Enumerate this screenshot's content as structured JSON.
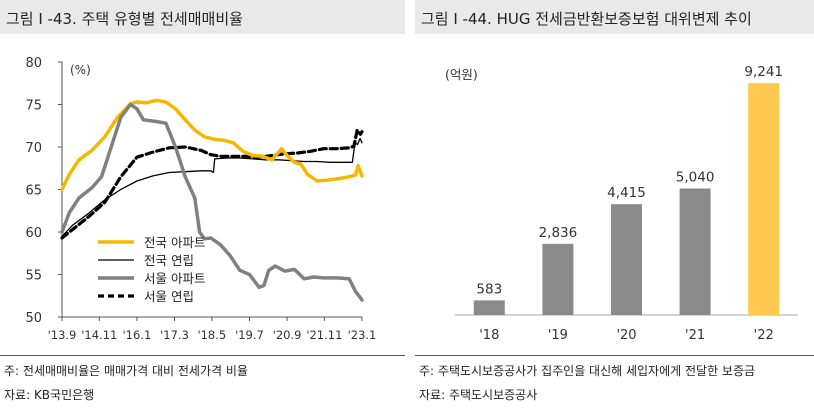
{
  "left": {
    "title": "그림 Ⅰ -43. 주택 유형별 전세매매비율",
    "note": "주: 전세매매비율은 매매가격 대비 전세가격 비율",
    "source": "자료: KB국민은행"
  },
  "right": {
    "title": "그림 Ⅰ -44. HUG 전세금반환보증보험 대위변제 추이",
    "note": "주: 주택도시보증공사가 집주인을 대신해 세입자에게 전달한 보증금",
    "source": "자료: 주택도시보증공사"
  },
  "chart_data": [
    {
      "type": "line",
      "title": "주택 유형별 전세매매비율",
      "ylabel": "(%)",
      "ylim": [
        50,
        80
      ],
      "yticks": [
        50,
        55,
        60,
        65,
        70,
        75,
        80
      ],
      "x_range": [
        2013.67,
        2023.0
      ],
      "x_tick_positions": [
        2013.67,
        2014.83,
        2016.0,
        2017.17,
        2018.33,
        2019.5,
        2020.67,
        2021.83,
        2023.0
      ],
      "x_tick_labels": [
        "'13.9",
        "'14.11",
        "'16.1",
        "'17.3",
        "'18.5",
        "'19.7",
        "'20.9",
        "'21.11",
        "'23.1"
      ],
      "legend_position": "bottom-left",
      "series": [
        {
          "name": "전국 아파트",
          "color": "#f5b800",
          "style": "solid-thick",
          "points": [
            [
              2013.67,
              65
            ],
            [
              2013.9,
              66.8
            ],
            [
              2014.2,
              68.5
            ],
            [
              2014.6,
              69.6
            ],
            [
              2015.0,
              71.2
            ],
            [
              2015.4,
              73.5
            ],
            [
              2015.8,
              75.1
            ],
            [
              2016.0,
              75.3
            ],
            [
              2016.3,
              75.2
            ],
            [
              2016.6,
              75.5
            ],
            [
              2016.9,
              75.3
            ],
            [
              2017.2,
              74.5
            ],
            [
              2017.5,
              73.2
            ],
            [
              2017.8,
              72.0
            ],
            [
              2018.1,
              71.2
            ],
            [
              2018.4,
              70.9
            ],
            [
              2018.7,
              70.8
            ],
            [
              2019.0,
              70.5
            ],
            [
              2019.3,
              69.5
            ],
            [
              2019.6,
              69.0
            ],
            [
              2019.9,
              68.9
            ],
            [
              2020.2,
              68.5
            ],
            [
              2020.5,
              69.8
            ],
            [
              2020.67,
              69.0
            ],
            [
              2020.9,
              68.2
            ],
            [
              2021.1,
              68.0
            ],
            [
              2021.3,
              66.8
            ],
            [
              2021.6,
              66.0
            ],
            [
              2021.9,
              66.1
            ],
            [
              2022.3,
              66.3
            ],
            [
              2022.6,
              66.5
            ],
            [
              2022.8,
              66.7
            ],
            [
              2022.88,
              67.8
            ],
            [
              2023.0,
              66.6
            ]
          ]
        },
        {
          "name": "전국 연립",
          "color": "#000000",
          "style": "solid-thin",
          "points": [
            [
              2013.67,
              59.5
            ],
            [
              2014.0,
              60.8
            ],
            [
              2014.5,
              62.2
            ],
            [
              2015.0,
              63.8
            ],
            [
              2015.5,
              65.0
            ],
            [
              2016.0,
              66.0
            ],
            [
              2016.5,
              66.6
            ],
            [
              2017.0,
              67.0
            ],
            [
              2017.5,
              67.1
            ],
            [
              2018.0,
              67.2
            ],
            [
              2018.3,
              67.2
            ],
            [
              2018.38,
              67.0
            ],
            [
              2018.42,
              68.6
            ],
            [
              2018.8,
              68.7
            ],
            [
              2019.2,
              68.7
            ],
            [
              2019.6,
              68.6
            ],
            [
              2020.0,
              68.5
            ],
            [
              2020.4,
              68.5
            ],
            [
              2020.8,
              68.4
            ],
            [
              2021.2,
              68.3
            ],
            [
              2021.6,
              68.3
            ],
            [
              2022.0,
              68.2
            ],
            [
              2022.4,
              68.2
            ],
            [
              2022.7,
              68.2
            ],
            [
              2022.78,
              70.5
            ],
            [
              2022.86,
              70.3
            ],
            [
              2022.94,
              71.0
            ],
            [
              2023.0,
              70.5
            ]
          ]
        },
        {
          "name": "서울 아파트",
          "color": "#808080",
          "style": "solid-thick",
          "points": [
            [
              2013.67,
              60
            ],
            [
              2013.9,
              62.3
            ],
            [
              2014.2,
              64.0
            ],
            [
              2014.6,
              65.2
            ],
            [
              2014.9,
              66.5
            ],
            [
              2015.2,
              70.0
            ],
            [
              2015.5,
              73.5
            ],
            [
              2015.8,
              75.0
            ],
            [
              2016.0,
              74.5
            ],
            [
              2016.2,
              73.2
            ],
            [
              2016.6,
              73.0
            ],
            [
              2016.9,
              72.8
            ],
            [
              2017.2,
              70.0
            ],
            [
              2017.5,
              66.5
            ],
            [
              2017.8,
              64.0
            ],
            [
              2017.95,
              60.0
            ],
            [
              2018.1,
              59.2
            ],
            [
              2018.3,
              59.3
            ],
            [
              2018.6,
              58.5
            ],
            [
              2018.9,
              57.2
            ],
            [
              2019.2,
              55.5
            ],
            [
              2019.5,
              55.0
            ],
            [
              2019.8,
              53.5
            ],
            [
              2019.95,
              53.7
            ],
            [
              2020.1,
              55.5
            ],
            [
              2020.3,
              56.0
            ],
            [
              2020.6,
              55.4
            ],
            [
              2020.9,
              55.6
            ],
            [
              2021.2,
              54.5
            ],
            [
              2021.5,
              54.7
            ],
            [
              2021.8,
              54.6
            ],
            [
              2022.2,
              54.6
            ],
            [
              2022.6,
              54.5
            ],
            [
              2022.8,
              53.0
            ],
            [
              2023.0,
              52.0
            ]
          ]
        },
        {
          "name": "서울 연립",
          "color": "#000000",
          "style": "dashed-thick",
          "points": [
            [
              2013.67,
              59.3
            ],
            [
              2014.0,
              60.3
            ],
            [
              2014.5,
              61.8
            ],
            [
              2015.0,
              63.5
            ],
            [
              2015.5,
              66.5
            ],
            [
              2016.0,
              68.8
            ],
            [
              2016.5,
              69.4
            ],
            [
              2017.0,
              69.9
            ],
            [
              2017.5,
              70.0
            ],
            [
              2018.0,
              69.6
            ],
            [
              2018.3,
              69.1
            ],
            [
              2018.6,
              68.9
            ],
            [
              2019.0,
              68.9
            ],
            [
              2019.4,
              68.9
            ],
            [
              2019.8,
              68.8
            ],
            [
              2020.2,
              69.0
            ],
            [
              2020.6,
              69.2
            ],
            [
              2021.0,
              69.3
            ],
            [
              2021.4,
              69.5
            ],
            [
              2021.8,
              69.8
            ],
            [
              2022.2,
              69.8
            ],
            [
              2022.6,
              69.9
            ],
            [
              2022.75,
              70.1
            ],
            [
              2022.85,
              72.0
            ],
            [
              2022.95,
              71.5
            ],
            [
              2023.0,
              71.8
            ]
          ]
        }
      ]
    },
    {
      "type": "bar",
      "title": "HUG 전세금반환보증보험 대위변제 추이",
      "ylabel": "(억원)",
      "ylim": [
        0,
        10000
      ],
      "categories": [
        "'18",
        "'19",
        "'20",
        "'21",
        "'22"
      ],
      "values": [
        583,
        2836,
        4415,
        5040,
        9241
      ],
      "value_labels": [
        "583",
        "2,836",
        "4,415",
        "5,040",
        "9,241"
      ],
      "bar_color": "#8a8a8a",
      "highlight_color": "#ffc94d",
      "highlight_index": 4
    }
  ]
}
